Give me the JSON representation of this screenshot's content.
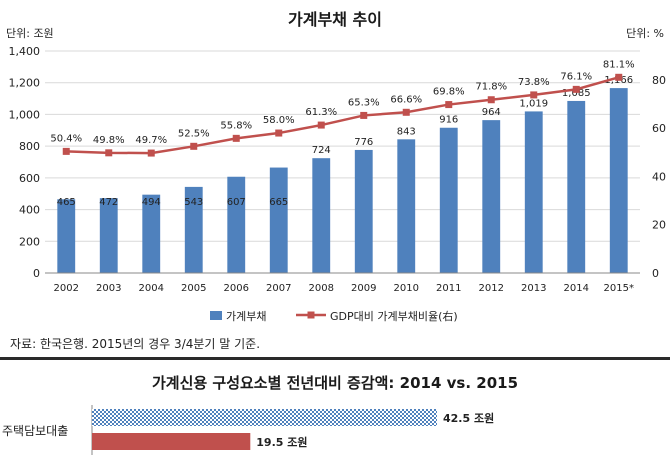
{
  "chart_data": [
    {
      "type": "bar",
      "title": "가계부채 추이",
      "left_unit": "단위: 조원",
      "right_unit": "단위: %",
      "categories": [
        "2002",
        "2003",
        "2004",
        "2005",
        "2006",
        "2007",
        "2008",
        "2009",
        "2010",
        "2011",
        "2012",
        "2013",
        "2014",
        "2015*"
      ],
      "series": [
        {
          "name": "가계부채",
          "type": "bar",
          "axis": "left",
          "color": "#4f81bd",
          "values": [
            465,
            472,
            494,
            543,
            607,
            665,
            724,
            776,
            843,
            916,
            964,
            1019,
            1085,
            1166
          ],
          "labels": [
            "465",
            "472",
            "494",
            "543",
            "607",
            "665",
            "724",
            "776",
            "843",
            "916",
            "964",
            "1,019",
            "1,085",
            "1,166"
          ]
        },
        {
          "name": "GDP대비 가계부채비율(右)",
          "type": "line",
          "axis": "right",
          "color": "#c0504d",
          "values": [
            50.4,
            49.8,
            49.7,
            52.5,
            55.8,
            58.0,
            61.3,
            65.3,
            66.6,
            69.8,
            71.8,
            73.8,
            76.1,
            81.1
          ],
          "labels": [
            "50.4%",
            "49.8%",
            "49.7%",
            "52.5%",
            "55.8%",
            "58.0%",
            "61.3%",
            "65.3%",
            "66.6%",
            "69.8%",
            "71.8%",
            "73.8%",
            "76.1%",
            "81.1%"
          ]
        }
      ],
      "ylim_left": [
        0,
        1400
      ],
      "yticks_left": [
        "0",
        "200",
        "400",
        "600",
        "800",
        "1,000",
        "1,200",
        "1,400"
      ],
      "ylim_right": [
        0,
        92
      ],
      "yticks_right": [
        "0",
        "20",
        "40",
        "60",
        "80"
      ],
      "grid": true,
      "legend": "bottom"
    },
    {
      "type": "bar",
      "orientation": "horizontal",
      "title": "가계신용 구성요소별 전년대비 증감액: 2014 vs. 2015",
      "categories": [
        "주택담보대출"
      ],
      "series": [
        {
          "name": "2015",
          "values": [
            42.5
          ],
          "label": "42.5 조원",
          "color": "#4f81bd",
          "pattern": "checker"
        },
        {
          "name": "2014",
          "values": [
            19.5
          ],
          "label": "19.5 조원",
          "color": "#c0504d"
        }
      ]
    }
  ],
  "source_note": "자료: 한국은행. 2015년의 경우 3/4분기 말 기준."
}
